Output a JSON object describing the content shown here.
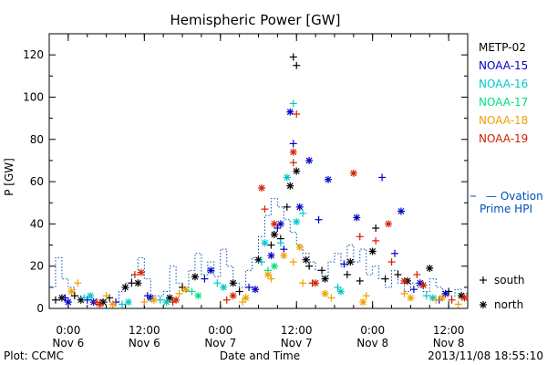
{
  "chart_data": {
    "type": "scatter",
    "title": "Hemispheric Power [GW]",
    "ylabel": "P [GW]",
    "xlabel": "Date and Time",
    "ylim": [
      0,
      130
    ],
    "yticks": [
      0,
      20,
      40,
      60,
      80,
      100,
      120
    ],
    "xlim": [
      "2013-11-05 21:00",
      "2013-11-08 15:00"
    ],
    "xticks": [
      {
        "x": "2013-11-06 00:00",
        "time": "0:00",
        "date": "Nov 6"
      },
      {
        "x": "2013-11-06 12:00",
        "time": "12:00",
        "date": "Nov 6"
      },
      {
        "x": "2013-11-07 00:00",
        "time": "0:00",
        "date": "Nov 7"
      },
      {
        "x": "2013-11-07 12:00",
        "time": "12:00",
        "date": "Nov 7"
      },
      {
        "x": "2013-11-08 00:00",
        "time": "0:00",
        "date": "Nov 8"
      },
      {
        "x": "2013-11-08 12:00",
        "time": "12:00",
        "date": "Nov 8"
      }
    ],
    "legend": {
      "placement": "right",
      "symbols": [
        {
          "marker": "+",
          "label": "south"
        },
        {
          "marker": "*",
          "label": "north"
        }
      ]
    },
    "series": [
      {
        "name": "METP-02",
        "color": "#000000",
        "south": [
          [
            "2013-11-05 22:00",
            4
          ],
          [
            "2013-11-06 01:00",
            6
          ],
          [
            "2013-11-06 06:30",
            5
          ],
          [
            "2013-11-06 10:00",
            12
          ],
          [
            "2013-11-06 18:00",
            10
          ],
          [
            "2013-11-07 03:00",
            8
          ],
          [
            "2013-11-07 08:00",
            30
          ],
          [
            "2013-11-07 09:30",
            33
          ],
          [
            "2013-11-07 10:30",
            48
          ],
          [
            "2013-11-07 11:30",
            119
          ],
          [
            "2013-11-07 12:00",
            115
          ],
          [
            "2013-11-07 14:00",
            20
          ],
          [
            "2013-11-07 16:00",
            18
          ],
          [
            "2013-11-07 20:00",
            16
          ],
          [
            "2013-11-07 22:00",
            13
          ],
          [
            "2013-11-08 00:30",
            38
          ],
          [
            "2013-11-08 02:00",
            14
          ],
          [
            "2013-11-08 04:00",
            16
          ],
          [
            "2013-11-08 08:00",
            11
          ],
          [
            "2013-11-08 12:00",
            8
          ]
        ],
        "north": [
          [
            "2013-11-05 23:00",
            5
          ],
          [
            "2013-11-06 02:00",
            4
          ],
          [
            "2013-11-06 05:30",
            3
          ],
          [
            "2013-11-06 09:00",
            10
          ],
          [
            "2013-11-06 11:00",
            12
          ],
          [
            "2013-11-06 16:00",
            5
          ],
          [
            "2013-11-06 20:00",
            15
          ],
          [
            "2013-11-07 02:00",
            12
          ],
          [
            "2013-11-07 06:00",
            23
          ],
          [
            "2013-11-07 08:30",
            35
          ],
          [
            "2013-11-07 11:00",
            58
          ],
          [
            "2013-11-07 12:00",
            65
          ],
          [
            "2013-11-07 13:30",
            23
          ],
          [
            "2013-11-07 16:30",
            14
          ],
          [
            "2013-11-07 20:30",
            22
          ],
          [
            "2013-11-08 00:00",
            27
          ],
          [
            "2013-11-08 05:30",
            13
          ],
          [
            "2013-11-08 09:00",
            19
          ],
          [
            "2013-11-08 14:00",
            6
          ]
        ]
      },
      {
        "name": "NOAA-15",
        "color": "#0000c8",
        "south": [
          [
            "2013-11-05 23:30",
            5
          ],
          [
            "2013-11-06 03:00",
            4
          ],
          [
            "2013-11-06 07:30",
            3
          ],
          [
            "2013-11-06 12:30",
            6
          ],
          [
            "2013-11-06 21:30",
            14
          ],
          [
            "2013-11-07 04:30",
            10
          ],
          [
            "2013-11-07 09:00",
            38
          ],
          [
            "2013-11-07 10:00",
            28
          ],
          [
            "2013-11-07 11:30",
            78
          ],
          [
            "2013-11-07 15:30",
            42
          ],
          [
            "2013-11-07 19:30",
            21
          ],
          [
            "2013-11-08 01:30",
            62
          ],
          [
            "2013-11-08 03:30",
            26
          ],
          [
            "2013-11-08 06:30",
            9
          ],
          [
            "2013-11-08 10:30",
            4
          ]
        ],
        "north": [
          [
            "2013-11-06 00:00",
            3
          ],
          [
            "2013-11-06 04:00",
            3
          ],
          [
            "2013-11-06 13:00",
            5
          ],
          [
            "2013-11-06 22:30",
            18
          ],
          [
            "2013-11-07 05:30",
            9
          ],
          [
            "2013-11-07 08:00",
            25
          ],
          [
            "2013-11-07 09:30",
            40
          ],
          [
            "2013-11-07 11:00",
            93
          ],
          [
            "2013-11-07 12:30",
            48
          ],
          [
            "2013-11-07 14:00",
            70
          ],
          [
            "2013-11-07 17:00",
            61
          ],
          [
            "2013-11-07 21:30",
            43
          ],
          [
            "2013-11-08 04:30",
            46
          ],
          [
            "2013-11-08 07:30",
            12
          ],
          [
            "2013-11-08 11:30",
            7
          ]
        ]
      },
      {
        "name": "NOAA-16",
        "color": "#00c8c8",
        "south": [
          [
            "2013-11-06 02:30",
            5
          ],
          [
            "2013-11-06 08:30",
            2
          ],
          [
            "2013-11-06 14:30",
            4
          ],
          [
            "2013-11-06 23:30",
            12
          ],
          [
            "2013-11-07 06:30",
            22
          ],
          [
            "2013-11-07 09:30",
            31
          ],
          [
            "2013-11-07 11:30",
            97
          ],
          [
            "2013-11-07 13:00",
            45
          ],
          [
            "2013-11-07 18:30",
            10
          ],
          [
            "2013-11-08 08:30",
            6
          ]
        ],
        "north": [
          [
            "2013-11-06 03:30",
            6
          ],
          [
            "2013-11-06 09:30",
            3
          ],
          [
            "2013-11-06 15:30",
            3
          ],
          [
            "2013-11-07 00:30",
            10
          ],
          [
            "2013-11-07 07:00",
            31
          ],
          [
            "2013-11-07 10:30",
            62
          ],
          [
            "2013-11-07 12:00",
            41
          ],
          [
            "2013-11-07 19:00",
            8
          ],
          [
            "2013-11-08 09:30",
            5
          ]
        ]
      },
      {
        "name": "NOAA-17",
        "color": "#00e080",
        "south": [
          [
            "2013-11-06 19:30",
            8
          ],
          [
            "2013-11-07 07:30",
            18
          ]
        ],
        "north": [
          [
            "2013-11-06 20:30",
            6
          ],
          [
            "2013-11-07 08:30",
            20
          ]
        ]
      },
      {
        "name": "NOAA-18",
        "color": "#f0a000",
        "south": [
          [
            "2013-11-06 01:30",
            12
          ],
          [
            "2013-11-06 06:00",
            6
          ],
          [
            "2013-11-06 12:00",
            3
          ],
          [
            "2013-11-06 17:30",
            7
          ],
          [
            "2013-11-07 03:30",
            3
          ],
          [
            "2013-11-07 08:00",
            14
          ],
          [
            "2013-11-07 11:30",
            22
          ],
          [
            "2013-11-07 13:00",
            12
          ],
          [
            "2013-11-07 17:30",
            5
          ],
          [
            "2013-11-07 23:00",
            6
          ],
          [
            "2013-11-08 05:00",
            7
          ],
          [
            "2013-11-08 10:00",
            4
          ],
          [
            "2013-11-08 13:30",
            2
          ]
        ],
        "north": [
          [
            "2013-11-06 00:30",
            8
          ],
          [
            "2013-11-06 07:00",
            2
          ],
          [
            "2013-11-06 13:30",
            4
          ],
          [
            "2013-11-06 18:30",
            9
          ],
          [
            "2013-11-07 04:00",
            5
          ],
          [
            "2013-11-07 07:30",
            16
          ],
          [
            "2013-11-07 10:00",
            25
          ],
          [
            "2013-11-07 12:30",
            29
          ],
          [
            "2013-11-07 16:30",
            7
          ],
          [
            "2013-11-07 22:30",
            3
          ],
          [
            "2013-11-08 06:00",
            5
          ],
          [
            "2013-11-08 11:00",
            5
          ]
        ]
      },
      {
        "name": "NOAA-19",
        "color": "#d02000",
        "south": [
          [
            "2013-11-06 04:30",
            3
          ],
          [
            "2013-11-06 10:30",
            16
          ],
          [
            "2013-11-06 16:30",
            3
          ],
          [
            "2013-11-07 01:00",
            4
          ],
          [
            "2013-11-07 07:00",
            47
          ],
          [
            "2013-11-07 11:30",
            69
          ],
          [
            "2013-11-07 12:00",
            92
          ],
          [
            "2013-11-07 14:30",
            12
          ],
          [
            "2013-11-07 22:00",
            34
          ],
          [
            "2013-11-08 00:30",
            32
          ],
          [
            "2013-11-08 03:00",
            22
          ],
          [
            "2013-11-08 07:00",
            16
          ],
          [
            "2013-11-08 12:30",
            4
          ]
        ],
        "north": [
          [
            "2013-11-06 05:00",
            2
          ],
          [
            "2013-11-06 11:30",
            17
          ],
          [
            "2013-11-06 17:00",
            4
          ],
          [
            "2013-11-07 02:00",
            6
          ],
          [
            "2013-11-07 06:30",
            57
          ],
          [
            "2013-11-07 08:30",
            40
          ],
          [
            "2013-11-07 11:30",
            74
          ],
          [
            "2013-11-07 15:00",
            12
          ],
          [
            "2013-11-07 21:00",
            64
          ],
          [
            "2013-11-08 02:30",
            40
          ],
          [
            "2013-11-08 05:00",
            13
          ],
          [
            "2013-11-08 08:00",
            11
          ],
          [
            "2013-11-08 14:30",
            5
          ]
        ]
      }
    ],
    "ovation": {
      "name": "Ovation Prime HPI",
      "color": "#0050b8",
      "steps": [
        [
          "2013-11-05 21:00",
          10
        ],
        [
          "2013-11-05 22:00",
          24
        ],
        [
          "2013-11-05 23:00",
          14
        ],
        [
          "2013-11-06 00:00",
          10
        ],
        [
          "2013-11-06 01:00",
          6
        ],
        [
          "2013-11-06 02:00",
          5
        ],
        [
          "2013-11-06 04:00",
          4
        ],
        [
          "2013-11-06 06:00",
          3
        ],
        [
          "2013-11-06 08:00",
          8
        ],
        [
          "2013-11-06 09:00",
          12
        ],
        [
          "2013-11-06 10:00",
          16
        ],
        [
          "2013-11-06 11:00",
          24
        ],
        [
          "2013-11-06 12:00",
          14
        ],
        [
          "2013-11-06 13:00",
          6
        ],
        [
          "2013-11-06 15:00",
          8
        ],
        [
          "2013-11-06 16:00",
          20
        ],
        [
          "2013-11-06 17:00",
          12
        ],
        [
          "2013-11-06 18:00",
          8
        ],
        [
          "2013-11-06 19:00",
          18
        ],
        [
          "2013-11-06 20:00",
          26
        ],
        [
          "2013-11-06 21:00",
          16
        ],
        [
          "2013-11-06 22:00",
          22
        ],
        [
          "2013-11-06 23:00",
          15
        ],
        [
          "2013-11-07 00:00",
          28
        ],
        [
          "2013-11-07 01:00",
          20
        ],
        [
          "2013-11-07 02:00",
          12
        ],
        [
          "2013-11-07 03:00",
          10
        ],
        [
          "2013-11-07 04:00",
          18
        ],
        [
          "2013-11-07 05:00",
          24
        ],
        [
          "2013-11-07 06:00",
          34
        ],
        [
          "2013-11-07 07:00",
          44
        ],
        [
          "2013-11-07 08:00",
          52
        ],
        [
          "2013-11-07 09:00",
          48
        ],
        [
          "2013-11-07 10:00",
          42
        ],
        [
          "2013-11-07 11:00",
          36
        ],
        [
          "2013-11-07 12:00",
          30
        ],
        [
          "2013-11-07 13:00",
          26
        ],
        [
          "2013-11-07 14:00",
          22
        ],
        [
          "2013-11-07 15:00",
          18
        ],
        [
          "2013-11-07 16:00",
          14
        ],
        [
          "2013-11-07 17:00",
          22
        ],
        [
          "2013-11-07 18:00",
          26
        ],
        [
          "2013-11-07 19:00",
          20
        ],
        [
          "2013-11-07 20:00",
          30
        ],
        [
          "2013-11-07 21:00",
          22
        ],
        [
          "2013-11-07 22:00",
          28
        ],
        [
          "2013-11-07 23:00",
          16
        ],
        [
          "2013-11-08 00:00",
          20
        ],
        [
          "2013-11-08 01:00",
          14
        ],
        [
          "2013-11-08 02:00",
          10
        ],
        [
          "2013-11-08 03:00",
          18
        ],
        [
          "2013-11-08 04:00",
          12
        ],
        [
          "2013-11-08 05:00",
          8
        ],
        [
          "2013-11-08 06:00",
          12
        ],
        [
          "2013-11-08 07:00",
          10
        ],
        [
          "2013-11-08 08:00",
          8
        ],
        [
          "2013-11-08 09:00",
          14
        ],
        [
          "2013-11-08 10:00",
          10
        ],
        [
          "2013-11-08 11:00",
          8
        ],
        [
          "2013-11-08 12:00",
          6
        ],
        [
          "2013-11-08 13:00",
          9
        ],
        [
          "2013-11-08 14:00",
          7
        ],
        [
          "2013-11-08 15:00",
          7
        ]
      ]
    }
  },
  "footer": {
    "credit": "Plot: CCMC",
    "timestamp": "2013/11/08 18:55:10"
  }
}
